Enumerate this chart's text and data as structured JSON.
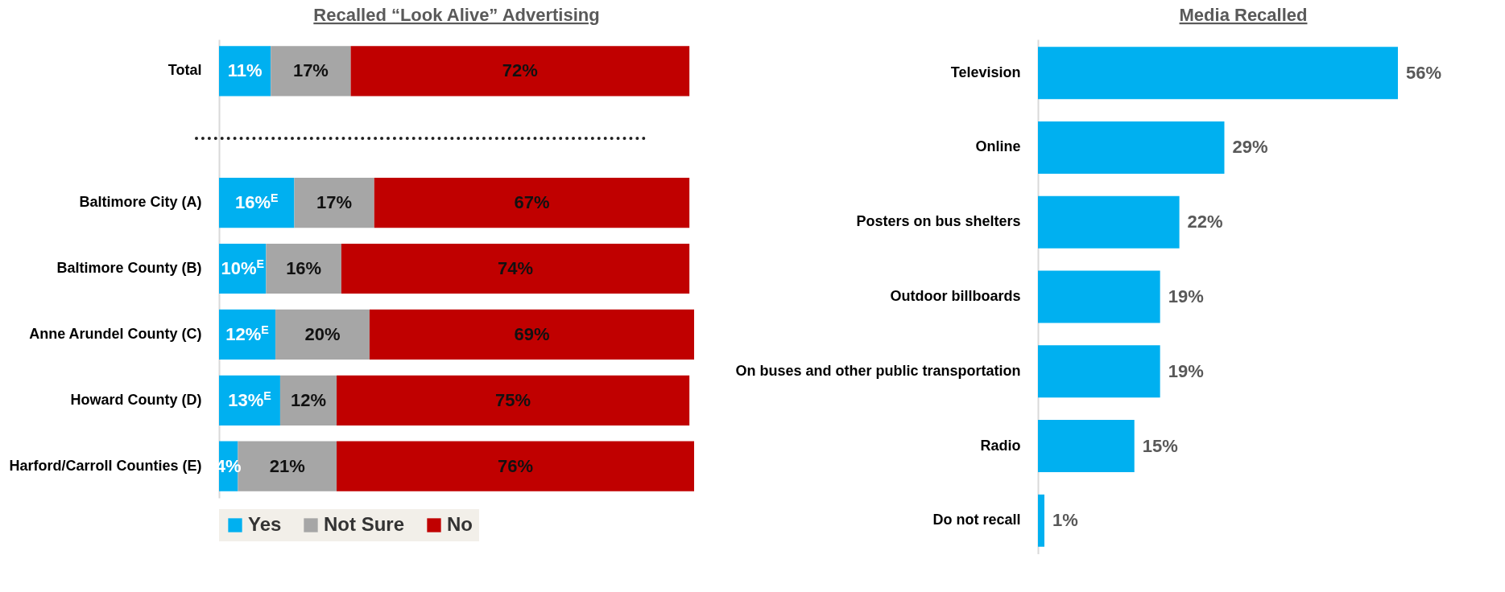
{
  "chart_data": [
    {
      "type": "bar",
      "orientation": "horizontal",
      "stacked": true,
      "title": "Recalled “Look Alive” Advertising",
      "legend": "bottom",
      "categories": [
        "Total",
        null,
        "Baltimore City (A)",
        "Baltimore County (B)",
        "Anne Arundel County (C)",
        "Howard County (D)",
        "Harford/Carroll Counties (E)"
      ],
      "series": [
        {
          "name": "Yes",
          "color": "#00b0f0",
          "values": [
            11,
            null,
            16,
            10,
            12,
            13,
            4
          ],
          "value_labels": [
            "11%",
            null,
            "16%$^{E}$",
            "10%$^{E}$",
            "12%$^{E}$",
            "13%$^{E}$",
            "4%"
          ]
        },
        {
          "name": "Not Sure",
          "color": "#a6a6a6",
          "values": [
            17,
            null,
            17,
            16,
            20,
            12,
            21
          ],
          "value_labels": [
            "17%",
            null,
            "17%",
            "16%",
            "20%",
            "12%",
            "21%"
          ]
        },
        {
          "name": "No",
          "color": "#c00000",
          "values": [
            72,
            null,
            67,
            74,
            69,
            75,
            76
          ],
          "value_labels": [
            "72%",
            null,
            "67%",
            "74%",
            "69%",
            "75%",
            "76%"
          ]
        }
      ]
    },
    {
      "type": "bar",
      "orientation": "horizontal",
      "title": "Media Recalled",
      "color": "#00b0f0",
      "categories": [
        "Television",
        "Online",
        "Posters on bus shelters",
        "Outdoor billboards",
        "On buses and other public transportation",
        "Radio",
        "Do not recall"
      ],
      "values": [
        56,
        29,
        22,
        19,
        19,
        15,
        1
      ],
      "value_labels": [
        "56%",
        "29%",
        "22%",
        "19%",
        "19%",
        "15%",
        "1%"
      ]
    }
  ]
}
